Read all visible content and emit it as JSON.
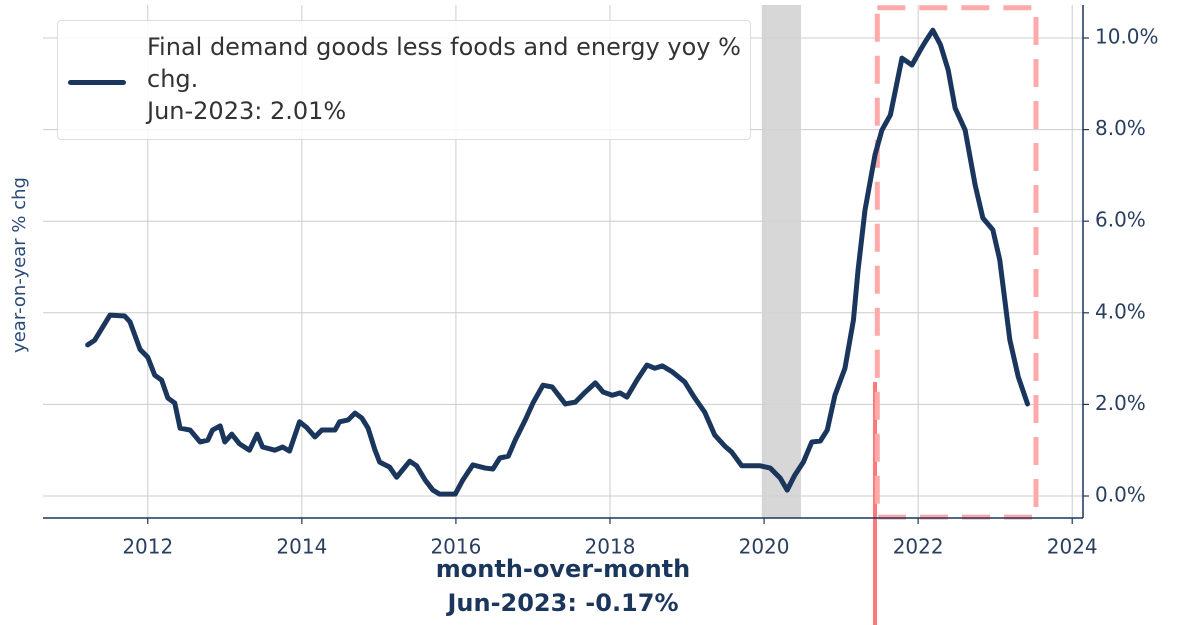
{
  "chart_data": {
    "type": "line",
    "ylabel": "year-on-year % chg",
    "annotation_title": "month-over-month",
    "annotation_note": "Jun-2023: -0.17%",
    "legend_note": "Jun-2023: 2.01%",
    "legend": "upper left",
    "grid": true,
    "xlim": [
      2010.64,
      2024.14
    ],
    "xticks": [
      2012,
      2014,
      2016,
      2018,
      2020,
      2022,
      2024
    ],
    "ylim": [
      -0.48,
      10.72
    ],
    "yticks": [
      {
        "value": 0,
        "label": "0.0%"
      },
      {
        "value": 2,
        "label": "2.0%"
      },
      {
        "value": 4,
        "label": "4.0%"
      },
      {
        "value": 6,
        "label": "6.0%"
      },
      {
        "value": 8,
        "label": "8.0%"
      },
      {
        "value": 10,
        "label": "10.0%"
      }
    ],
    "recession": {
      "x": [
        2019.97,
        2020.48
      ],
      "color": "#d3d3d3"
    },
    "highlight_box": {
      "x": [
        2021.47,
        2023.53
      ],
      "y": [
        -0.46,
        10.66
      ],
      "color": "#ffaaaa"
    },
    "spike": {
      "x": 2021.44,
      "y": 2.49,
      "color": "#ff7777"
    },
    "x": [
      2011.22,
      2011.31,
      2011.51,
      2011.7,
      2011.77,
      2011.9,
      2012.0,
      2012.09,
      2012.18,
      2012.26,
      2012.35,
      2012.42,
      2012.55,
      2012.68,
      2012.78,
      2012.84,
      2012.94,
      2013.0,
      2013.09,
      2013.19,
      2013.32,
      2013.42,
      2013.49,
      2013.65,
      2013.75,
      2013.84,
      2013.97,
      2014.06,
      2014.17,
      2014.26,
      2014.43,
      2014.49,
      2014.6,
      2014.69,
      2014.78,
      2014.86,
      2014.95,
      2015.01,
      2015.14,
      2015.23,
      2015.4,
      2015.49,
      2015.6,
      2015.7,
      2015.79,
      2015.99,
      2016.09,
      2016.22,
      2016.38,
      2016.48,
      2016.57,
      2016.68,
      2016.77,
      2016.9,
      2017.0,
      2017.13,
      2017.25,
      2017.42,
      2017.55,
      2017.68,
      2017.81,
      2017.91,
      2018.03,
      2018.13,
      2018.22,
      2018.35,
      2018.48,
      2018.58,
      2018.68,
      2018.81,
      2018.97,
      2019.1,
      2019.23,
      2019.36,
      2019.49,
      2019.58,
      2019.71,
      2019.95,
      2020.08,
      2020.21,
      2020.3,
      2020.4,
      2020.51,
      2020.62,
      2020.73,
      2020.82,
      2020.92,
      2021.05,
      2021.16,
      2021.22,
      2021.31,
      2021.44,
      2021.53,
      2021.64,
      2021.79,
      2021.92,
      2022.03,
      2022.09,
      2022.19,
      2022.29,
      2022.39,
      2022.48,
      2022.61,
      2022.74,
      2022.84,
      2022.97,
      2023.06,
      2023.19,
      2023.3,
      2023.42
    ],
    "series": [
      {
        "name": "Final demand goods less foods and energy yoy % chg.",
        "color": "#1b365d",
        "values": [
          3.3,
          3.4,
          3.95,
          3.93,
          3.8,
          3.2,
          3.03,
          2.64,
          2.53,
          2.14,
          2.03,
          1.48,
          1.44,
          1.18,
          1.22,
          1.44,
          1.53,
          1.18,
          1.35,
          1.14,
          1.0,
          1.35,
          1.07,
          1.0,
          1.07,
          0.98,
          1.62,
          1.5,
          1.29,
          1.44,
          1.44,
          1.62,
          1.66,
          1.81,
          1.7,
          1.48,
          1.0,
          0.74,
          0.63,
          0.41,
          0.76,
          0.66,
          0.35,
          0.13,
          0.04,
          0.04,
          0.35,
          0.68,
          0.61,
          0.59,
          0.83,
          0.87,
          1.22,
          1.66,
          2.03,
          2.42,
          2.38,
          2.01,
          2.05,
          2.27,
          2.47,
          2.27,
          2.2,
          2.25,
          2.16,
          2.53,
          2.86,
          2.79,
          2.84,
          2.71,
          2.49,
          2.14,
          1.83,
          1.33,
          1.09,
          0.96,
          0.66,
          0.66,
          0.61,
          0.39,
          0.13,
          0.46,
          0.74,
          1.18,
          1.2,
          1.44,
          2.2,
          2.79,
          3.84,
          4.93,
          6.24,
          7.45,
          7.99,
          8.32,
          9.56,
          9.41,
          9.74,
          9.91,
          10.17,
          9.85,
          9.3,
          8.47,
          7.99,
          6.79,
          6.07,
          5.81,
          5.15,
          3.41,
          2.6,
          2.01
        ]
      }
    ]
  }
}
